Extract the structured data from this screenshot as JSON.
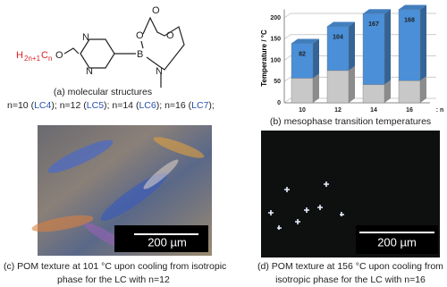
{
  "chart_data": {
    "type": "bar3d-stacked",
    "y_label": "Temperature / °C",
    "x_label": ": n",
    "categories": [
      "10",
      "12",
      "14",
      "16"
    ],
    "series": [
      {
        "color": "#c8c8c8",
        "values": [
          58,
          76,
          43,
          52
        ]
      },
      {
        "color": "#4a8fd8",
        "values": [
          82,
          104,
          167,
          168
        ],
        "show_value_labels": true
      }
    ],
    "ylim": [
      0,
      220
    ],
    "yticks": [
      0,
      50,
      100,
      150,
      200
    ],
    "grid": true
  },
  "structure": {
    "chain": {
      "h": "H",
      "h_sub": "2n+1",
      "c": "C",
      "c_sub": "n",
      "o": "O"
    },
    "atoms": [
      "N",
      "N",
      "B",
      "O",
      "O",
      "O",
      "N"
    ]
  },
  "captions": {
    "a": "(a) molecular structures",
    "compounds": [
      {
        "prefix": "n=10 (",
        "code": "LC4",
        "suffix": "); "
      },
      {
        "prefix": "n=12 (",
        "code": "LC5",
        "suffix": "); "
      },
      {
        "prefix": "n=14 (",
        "code": "LC6",
        "suffix": "); "
      },
      {
        "prefix": "n=16 (",
        "code": "LC7",
        "suffix": ");"
      }
    ],
    "b": "(b) mesophase transition temperatures",
    "c": [
      "(c) POM texture at 101 °C upon cooling from isotropic",
      "phase for the LC with n=12"
    ],
    "d": [
      "(d) POM texture at 156 °C upon cooling from",
      "isotropic phase for the LC with n=16"
    ]
  },
  "scale_bars": {
    "c": "200 µm",
    "d": "200 µm"
  }
}
